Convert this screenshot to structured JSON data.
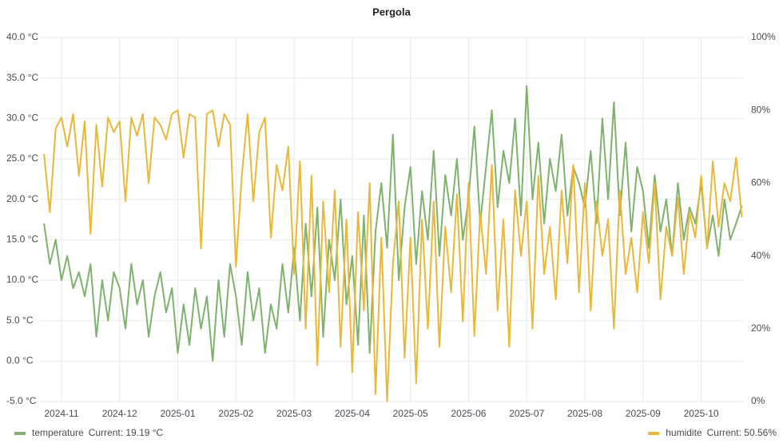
{
  "chart_data": {
    "type": "line",
    "title": "Pergola",
    "x": [
      0.7,
      0.8,
      0.9,
      1.0,
      1.1,
      1.2,
      1.3,
      1.4,
      1.5,
      1.6,
      1.7,
      1.8,
      1.9,
      2.0,
      2.1,
      2.2,
      2.3,
      2.4,
      2.5,
      2.6,
      2.7,
      2.8,
      2.9,
      3.0,
      3.1,
      3.2,
      3.3,
      3.4,
      3.5,
      3.6,
      3.7,
      3.8,
      3.9,
      4.0,
      4.1,
      4.2,
      4.3,
      4.4,
      4.5,
      4.6,
      4.7,
      4.8,
      4.9,
      5.0,
      5.1,
      5.2,
      5.3,
      5.4,
      5.5,
      5.6,
      5.7,
      5.8,
      5.9,
      6.0,
      6.1,
      6.2,
      6.3,
      6.4,
      6.5,
      6.6,
      6.7,
      6.8,
      6.9,
      7.0,
      7.1,
      7.2,
      7.3,
      7.4,
      7.5,
      7.6,
      7.7,
      7.8,
      7.9,
      8.0,
      8.1,
      8.2,
      8.3,
      8.4,
      8.5,
      8.6,
      8.7,
      8.8,
      8.9,
      9.0,
      9.1,
      9.2,
      9.3,
      9.4,
      9.5,
      9.6,
      9.7,
      9.8,
      9.9,
      10.0,
      10.1,
      10.2,
      10.3,
      10.4,
      10.5,
      10.6,
      10.7,
      10.8,
      10.9,
      11.0,
      11.1,
      11.2,
      11.3,
      11.4,
      11.5,
      11.6,
      11.7,
      11.8,
      11.9,
      12.0,
      12.1,
      12.2,
      12.3,
      12.4,
      12.5,
      12.6,
      12.7
    ],
    "series": [
      {
        "name": "temperature",
        "legend_value": "Current: 19.19 °C",
        "color": "#7eb26d",
        "axis": "y",
        "values": [
          17,
          12,
          15,
          10,
          13,
          9,
          11,
          8,
          12,
          3,
          10,
          5,
          11,
          9,
          4,
          12,
          7,
          10,
          3,
          8,
          11,
          6,
          9,
          1,
          7,
          2,
          9,
          4,
          8,
          0,
          10,
          3,
          12,
          8,
          2,
          11,
          5,
          9,
          1,
          7,
          4,
          12,
          6,
          14,
          5,
          17,
          8,
          19,
          3,
          15,
          10,
          20,
          7,
          13,
          2,
          18,
          1,
          16,
          22,
          14,
          28,
          10,
          19,
          24,
          12,
          21,
          15,
          26,
          13,
          23,
          18,
          25,
          15,
          20,
          29,
          17,
          24,
          31,
          19,
          26,
          22,
          30,
          18,
          34,
          20,
          27,
          17,
          25,
          21,
          28,
          18,
          24,
          22,
          19,
          26,
          17,
          30,
          20,
          32,
          18,
          27,
          16,
          24,
          21,
          14,
          23,
          16,
          20,
          13,
          22,
          15,
          19,
          17,
          22,
          14,
          18,
          13,
          20,
          15,
          17,
          19.19
        ]
      },
      {
        "name": "humidite",
        "legend_value": "Current: 50.56%",
        "color": "#eab839",
        "axis": "y2",
        "values": [
          68,
          52,
          75,
          78,
          70,
          79,
          62,
          77,
          46,
          76,
          59,
          78,
          74,
          77,
          55,
          78,
          73,
          79,
          60,
          78,
          76,
          72,
          79,
          80,
          67,
          79,
          78,
          42,
          79,
          80,
          70,
          79,
          76,
          37,
          62,
          79,
          55,
          74,
          78,
          45,
          65,
          58,
          70,
          35,
          66,
          20,
          62,
          10,
          55,
          30,
          58,
          15,
          50,
          8,
          52,
          25,
          60,
          2,
          45,
          0,
          38,
          55,
          12,
          45,
          5,
          50,
          20,
          55,
          15,
          48,
          30,
          57,
          22,
          60,
          18,
          52,
          35,
          65,
          25,
          50,
          15,
          58,
          40,
          55,
          20,
          62,
          35,
          48,
          28,
          58,
          38,
          65,
          30,
          60,
          25,
          55,
          40,
          50,
          20,
          58,
          35,
          45,
          30,
          52,
          38,
          60,
          28,
          48,
          40,
          56,
          35,
          52,
          45,
          62,
          42,
          66,
          48,
          60,
          55,
          67,
          50.56
        ]
      }
    ],
    "xlim": [
      0.63,
      12.72
    ],
    "xticks": [
      {
        "value": 1,
        "label": "2024-11"
      },
      {
        "value": 2,
        "label": "2024-12"
      },
      {
        "value": 3,
        "label": "2025-01"
      },
      {
        "value": 4,
        "label": "2025-02"
      },
      {
        "value": 5,
        "label": "2025-03"
      },
      {
        "value": 6,
        "label": "2025-04"
      },
      {
        "value": 7,
        "label": "2025-05"
      },
      {
        "value": 8,
        "label": "2025-06"
      },
      {
        "value": 9,
        "label": "2025-07"
      },
      {
        "value": 10,
        "label": "2025-08"
      },
      {
        "value": 11,
        "label": "2025-09"
      },
      {
        "value": 12,
        "label": "2025-10"
      }
    ],
    "ylim": [
      -5,
      40
    ],
    "yticks": [
      {
        "value": -5,
        "label": "-5.0 °C"
      },
      {
        "value": 0,
        "label": "0.0 °C"
      },
      {
        "value": 5,
        "label": "5.0 °C"
      },
      {
        "value": 10,
        "label": "10.0 °C"
      },
      {
        "value": 15,
        "label": "15.0 °C"
      },
      {
        "value": 20,
        "label": "20.0 °C"
      },
      {
        "value": 25,
        "label": "25.0 °C"
      },
      {
        "value": 30,
        "label": "30.0 °C"
      },
      {
        "value": 35,
        "label": "35.0 °C"
      },
      {
        "value": 40,
        "label": "40.0 °C"
      }
    ],
    "y2lim": [
      0,
      100
    ],
    "y2ticks": [
      {
        "value": 0,
        "label": "0%"
      },
      {
        "value": 20,
        "label": "20%"
      },
      {
        "value": 40,
        "label": "40%"
      },
      {
        "value": 60,
        "label": "60%"
      },
      {
        "value": 80,
        "label": "80%"
      },
      {
        "value": 100,
        "label": "100%"
      }
    ],
    "grid": true
  }
}
